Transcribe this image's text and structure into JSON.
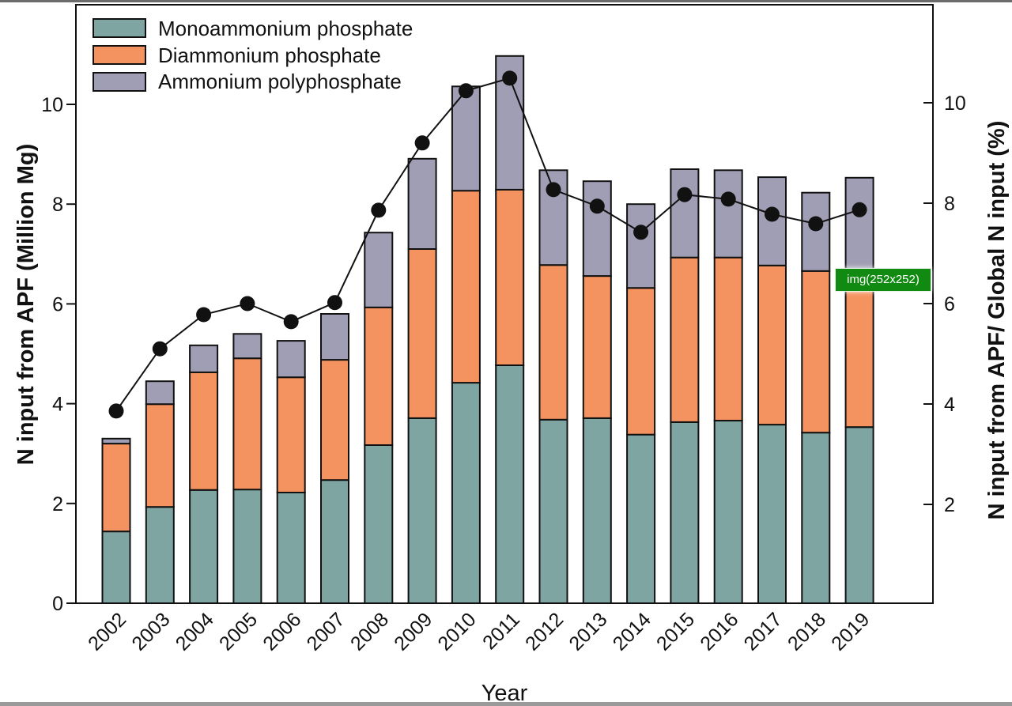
{
  "chart_data": {
    "type": "bar",
    "stacked": true,
    "title": "",
    "xlabel": "Year",
    "ylabel": "N input from APF (Million Mg)",
    "y2label": "N input from APF/ Global N input (%)",
    "ylim": [
      0,
      12
    ],
    "y2lim": [
      0,
      12
    ],
    "yticks": [
      0,
      2,
      4,
      6,
      8,
      10
    ],
    "y2ticks": [
      2,
      4,
      6,
      8,
      10
    ],
    "grid": false,
    "legend_position": "top-left",
    "categories": [
      "2002",
      "2003",
      "2004",
      "2005",
      "2006",
      "2007",
      "2008",
      "2009",
      "2010",
      "2011",
      "2012",
      "2013",
      "2014",
      "2015",
      "2016",
      "2017",
      "2018",
      "2019"
    ],
    "series": [
      {
        "name": "Monoammonium phosphate",
        "color": "#7fa5a3",
        "values": [
          1.44,
          1.93,
          2.27,
          2.28,
          2.22,
          2.47,
          3.17,
          3.71,
          4.42,
          4.77,
          3.68,
          3.71,
          3.38,
          3.63,
          3.66,
          3.58,
          3.42,
          3.53
        ]
      },
      {
        "name": "Diammonium phosphate",
        "color": "#f4935f",
        "values": [
          1.76,
          2.06,
          2.36,
          2.63,
          2.31,
          2.41,
          2.76,
          3.39,
          3.85,
          3.52,
          3.1,
          2.85,
          2.94,
          3.3,
          3.27,
          3.19,
          3.24,
          3.17
        ]
      },
      {
        "name": "Ammonium polyphosphate",
        "color": "#a09eb4",
        "values": [
          0.1,
          0.46,
          0.54,
          0.49,
          0.73,
          0.92,
          1.5,
          1.81,
          2.09,
          2.68,
          1.9,
          1.9,
          1.68,
          1.77,
          1.75,
          1.77,
          1.57,
          1.83
        ]
      }
    ],
    "line_series": {
      "name": "N input from APF/ Global N input (%)",
      "axis": "right",
      "color": "#111111",
      "values": [
        3.86,
        5.1,
        5.78,
        6.0,
        5.64,
        6.02,
        7.86,
        9.2,
        10.24,
        10.49,
        8.27,
        7.94,
        7.42,
        8.17,
        8.08,
        7.78,
        7.59,
        7.87
      ]
    }
  },
  "overlay": {
    "badge_text": "img(252x252)",
    "badge_color": "#118a11"
  }
}
